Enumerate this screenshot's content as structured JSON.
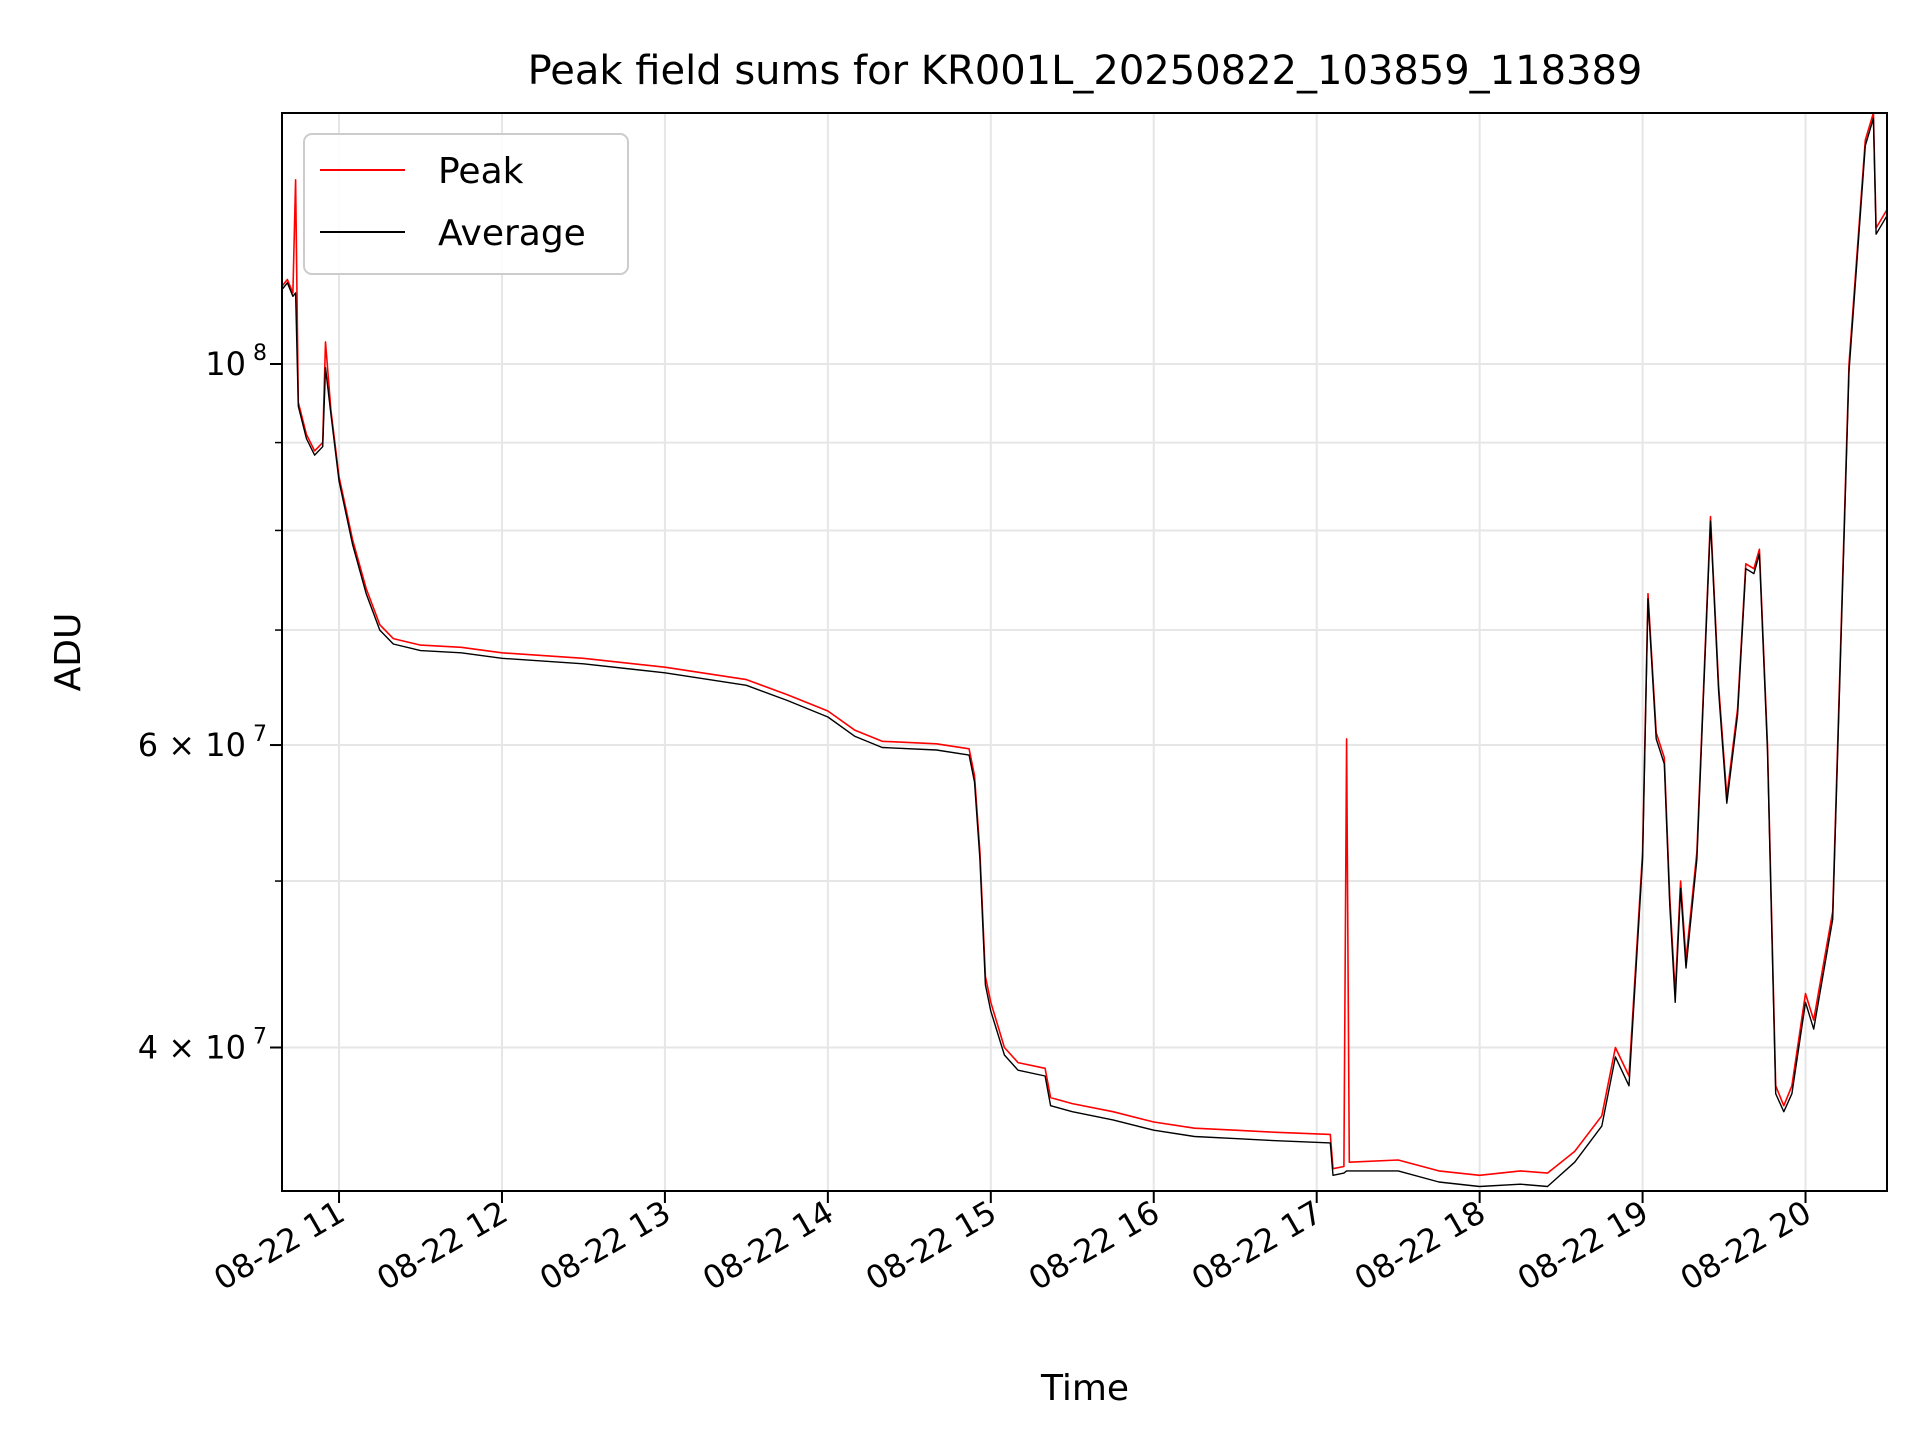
{
  "chart_data": {
    "type": "line",
    "title": "Peak field sums for KR001L_20250822_103859_118389",
    "xlabel": "Time",
    "ylabel": "ADU",
    "y_scale": "log",
    "grid": true,
    "legend_position": "upper-left",
    "xlim": [
      "2025-08-22T10:39",
      "2025-08-22T20:30"
    ],
    "ylim": [
      33000000,
      140000000
    ],
    "x_ticks": [
      {
        "time": "2025-08-22T11:00",
        "label": "08-22 11"
      },
      {
        "time": "2025-08-22T12:00",
        "label": "08-22 12"
      },
      {
        "time": "2025-08-22T13:00",
        "label": "08-22 13"
      },
      {
        "time": "2025-08-22T14:00",
        "label": "08-22 14"
      },
      {
        "time": "2025-08-22T15:00",
        "label": "08-22 15"
      },
      {
        "time": "2025-08-22T16:00",
        "label": "08-22 16"
      },
      {
        "time": "2025-08-22T17:00",
        "label": "08-22 17"
      },
      {
        "time": "2025-08-22T18:00",
        "label": "08-22 18"
      },
      {
        "time": "2025-08-22T19:00",
        "label": "08-22 19"
      },
      {
        "time": "2025-08-22T20:00",
        "label": "08-22 20"
      }
    ],
    "y_major_ticks": [
      {
        "value": 100000000,
        "base": "10",
        "exp": "8"
      },
      {
        "value": 60000000,
        "base": "6 × 10",
        "exp": "7"
      },
      {
        "value": 40000000,
        "base": "4 × 10",
        "exp": "7"
      }
    ],
    "y_minor_gridlines": [
      50000000,
      70000000,
      80000000,
      90000000
    ],
    "series": [
      {
        "name": "Peak",
        "color": "#ff0000",
        "points": [
          [
            "2025-08-22T10:39",
            111000000
          ],
          [
            "2025-08-22T10:41",
            112000000
          ],
          [
            "2025-08-22T10:43",
            110000000
          ],
          [
            "2025-08-22T10:44",
            128000000
          ],
          [
            "2025-08-22T10:45",
            95000000
          ],
          [
            "2025-08-22T10:48",
            91000000
          ],
          [
            "2025-08-22T10:51",
            89000000
          ],
          [
            "2025-08-22T10:54",
            90000000
          ],
          [
            "2025-08-22T10:55",
            103000000
          ],
          [
            "2025-08-22T10:57",
            94000000
          ],
          [
            "2025-08-22T11:00",
            86000000
          ],
          [
            "2025-08-22T11:05",
            79000000
          ],
          [
            "2025-08-22T11:10",
            74000000
          ],
          [
            "2025-08-22T11:15",
            70500000
          ],
          [
            "2025-08-22T11:20",
            69200000
          ],
          [
            "2025-08-22T11:30",
            68600000
          ],
          [
            "2025-08-22T11:45",
            68400000
          ],
          [
            "2025-08-22T12:00",
            67900000
          ],
          [
            "2025-08-22T12:30",
            67400000
          ],
          [
            "2025-08-22T13:00",
            66600000
          ],
          [
            "2025-08-22T13:30",
            65500000
          ],
          [
            "2025-08-22T13:45",
            64200000
          ],
          [
            "2025-08-22T14:00",
            62800000
          ],
          [
            "2025-08-22T14:10",
            61200000
          ],
          [
            "2025-08-22T14:20",
            60300000
          ],
          [
            "2025-08-22T14:40",
            60100000
          ],
          [
            "2025-08-22T14:52",
            59700000
          ],
          [
            "2025-08-22T14:54",
            57600000
          ],
          [
            "2025-08-22T14:56",
            52000000
          ],
          [
            "2025-08-22T14:58",
            44000000
          ],
          [
            "2025-08-22T15:00",
            42500000
          ],
          [
            "2025-08-22T15:05",
            40000000
          ],
          [
            "2025-08-22T15:10",
            39200000
          ],
          [
            "2025-08-22T15:20",
            38900000
          ],
          [
            "2025-08-22T15:22",
            37400000
          ],
          [
            "2025-08-22T15:30",
            37100000
          ],
          [
            "2025-08-22T15:45",
            36700000
          ],
          [
            "2025-08-22T16:00",
            36200000
          ],
          [
            "2025-08-22T16:15",
            35900000
          ],
          [
            "2025-08-22T16:30",
            35800000
          ],
          [
            "2025-08-22T16:45",
            35700000
          ],
          [
            "2025-08-22T17:05",
            35600000
          ],
          [
            "2025-08-22T17:06",
            34000000
          ],
          [
            "2025-08-22T17:10",
            34100000
          ],
          [
            "2025-08-22T17:11",
            60500000
          ],
          [
            "2025-08-22T17:12",
            34300000
          ],
          [
            "2025-08-22T17:30",
            34400000
          ],
          [
            "2025-08-22T17:45",
            33900000
          ],
          [
            "2025-08-22T18:00",
            33700000
          ],
          [
            "2025-08-22T18:15",
            33900000
          ],
          [
            "2025-08-22T18:25",
            33800000
          ],
          [
            "2025-08-22T18:35",
            34800000
          ],
          [
            "2025-08-22T18:45",
            36500000
          ],
          [
            "2025-08-22T18:50",
            40000000
          ],
          [
            "2025-08-22T18:55",
            38500000
          ],
          [
            "2025-08-22T19:00",
            52000000
          ],
          [
            "2025-08-22T19:02",
            73500000
          ],
          [
            "2025-08-22T19:05",
            61000000
          ],
          [
            "2025-08-22T19:08",
            59000000
          ],
          [
            "2025-08-22T19:10",
            49000000
          ],
          [
            "2025-08-22T19:12",
            43000000
          ],
          [
            "2025-08-22T19:14",
            50000000
          ],
          [
            "2025-08-22T19:16",
            45000000
          ],
          [
            "2025-08-22T19:20",
            52000000
          ],
          [
            "2025-08-22T19:25",
            81500000
          ],
          [
            "2025-08-22T19:28",
            65000000
          ],
          [
            "2025-08-22T19:31",
            56000000
          ],
          [
            "2025-08-22T19:35",
            63000000
          ],
          [
            "2025-08-22T19:38",
            76500000
          ],
          [
            "2025-08-22T19:41",
            76000000
          ],
          [
            "2025-08-22T19:43",
            78000000
          ],
          [
            "2025-08-22T19:46",
            60000000
          ],
          [
            "2025-08-22T19:49",
            38000000
          ],
          [
            "2025-08-22T19:52",
            37000000
          ],
          [
            "2025-08-22T19:55",
            38000000
          ],
          [
            "2025-08-22T20:00",
            43000000
          ],
          [
            "2025-08-22T20:03",
            41500000
          ],
          [
            "2025-08-22T20:10",
            48000000
          ],
          [
            "2025-08-22T20:16",
            100000000
          ],
          [
            "2025-08-22T20:22",
            135000000
          ],
          [
            "2025-08-22T20:25",
            140000000
          ],
          [
            "2025-08-22T20:26",
            120000000
          ],
          [
            "2025-08-22T20:30",
            123000000
          ]
        ]
      },
      {
        "name": "Average",
        "color": "#000000",
        "points": [
          [
            "2025-08-22T10:39",
            110500000
          ],
          [
            "2025-08-22T10:41",
            111500000
          ],
          [
            "2025-08-22T10:43",
            109500000
          ],
          [
            "2025-08-22T10:44",
            110000000
          ],
          [
            "2025-08-22T10:45",
            94500000
          ],
          [
            "2025-08-22T10:48",
            90500000
          ],
          [
            "2025-08-22T10:51",
            88500000
          ],
          [
            "2025-08-22T10:54",
            89500000
          ],
          [
            "2025-08-22T10:55",
            99500000
          ],
          [
            "2025-08-22T10:57",
            93500000
          ],
          [
            "2025-08-22T11:00",
            85500000
          ],
          [
            "2025-08-22T11:05",
            78500000
          ],
          [
            "2025-08-22T11:10",
            73500000
          ],
          [
            "2025-08-22T11:15",
            70000000
          ],
          [
            "2025-08-22T11:20",
            68700000
          ],
          [
            "2025-08-22T11:30",
            68100000
          ],
          [
            "2025-08-22T11:45",
            67900000
          ],
          [
            "2025-08-22T12:00",
            67400000
          ],
          [
            "2025-08-22T12:30",
            66900000
          ],
          [
            "2025-08-22T13:00",
            66100000
          ],
          [
            "2025-08-22T13:30",
            65000000
          ],
          [
            "2025-08-22T13:45",
            63700000
          ],
          [
            "2025-08-22T14:00",
            62300000
          ],
          [
            "2025-08-22T14:10",
            60700000
          ],
          [
            "2025-08-22T14:20",
            59800000
          ],
          [
            "2025-08-22T14:40",
            59600000
          ],
          [
            "2025-08-22T14:52",
            59200000
          ],
          [
            "2025-08-22T14:54",
            57100000
          ],
          [
            "2025-08-22T14:56",
            51500000
          ],
          [
            "2025-08-22T14:58",
            43500000
          ],
          [
            "2025-08-22T15:00",
            42000000
          ],
          [
            "2025-08-22T15:05",
            39600000
          ],
          [
            "2025-08-22T15:10",
            38800000
          ],
          [
            "2025-08-22T15:20",
            38500000
          ],
          [
            "2025-08-22T15:22",
            37000000
          ],
          [
            "2025-08-22T15:30",
            36700000
          ],
          [
            "2025-08-22T15:45",
            36300000
          ],
          [
            "2025-08-22T16:00",
            35800000
          ],
          [
            "2025-08-22T16:15",
            35500000
          ],
          [
            "2025-08-22T16:30",
            35400000
          ],
          [
            "2025-08-22T16:45",
            35300000
          ],
          [
            "2025-08-22T17:05",
            35200000
          ],
          [
            "2025-08-22T17:06",
            33700000
          ],
          [
            "2025-08-22T17:10",
            33800000
          ],
          [
            "2025-08-22T17:11",
            33900000
          ],
          [
            "2025-08-22T17:12",
            33900000
          ],
          [
            "2025-08-22T17:30",
            33900000
          ],
          [
            "2025-08-22T17:45",
            33400000
          ],
          [
            "2025-08-22T18:00",
            33200000
          ],
          [
            "2025-08-22T18:15",
            33300000
          ],
          [
            "2025-08-22T18:25",
            33200000
          ],
          [
            "2025-08-22T18:35",
            34300000
          ],
          [
            "2025-08-22T18:45",
            36000000
          ],
          [
            "2025-08-22T18:50",
            39500000
          ],
          [
            "2025-08-22T18:55",
            38000000
          ],
          [
            "2025-08-22T19:00",
            51500000
          ],
          [
            "2025-08-22T19:02",
            73000000
          ],
          [
            "2025-08-22T19:05",
            60500000
          ],
          [
            "2025-08-22T19:08",
            58500000
          ],
          [
            "2025-08-22T19:10",
            48500000
          ],
          [
            "2025-08-22T19:12",
            42500000
          ],
          [
            "2025-08-22T19:14",
            49500000
          ],
          [
            "2025-08-22T19:16",
            44500000
          ],
          [
            "2025-08-22T19:20",
            51500000
          ],
          [
            "2025-08-22T19:25",
            81000000
          ],
          [
            "2025-08-22T19:28",
            64500000
          ],
          [
            "2025-08-22T19:31",
            55500000
          ],
          [
            "2025-08-22T19:35",
            62500000
          ],
          [
            "2025-08-22T19:38",
            76000000
          ],
          [
            "2025-08-22T19:41",
            75500000
          ],
          [
            "2025-08-22T19:43",
            77500000
          ],
          [
            "2025-08-22T19:46",
            59500000
          ],
          [
            "2025-08-22T19:49",
            37600000
          ],
          [
            "2025-08-22T19:52",
            36700000
          ],
          [
            "2025-08-22T19:55",
            37600000
          ],
          [
            "2025-08-22T20:00",
            42500000
          ],
          [
            "2025-08-22T20:03",
            41000000
          ],
          [
            "2025-08-22T20:10",
            47500000
          ],
          [
            "2025-08-22T20:16",
            99000000
          ],
          [
            "2025-08-22T20:22",
            134000000
          ],
          [
            "2025-08-22T20:25",
            139000000
          ],
          [
            "2025-08-22T20:26",
            119000000
          ],
          [
            "2025-08-22T20:30",
            122000000
          ]
        ]
      }
    ]
  }
}
